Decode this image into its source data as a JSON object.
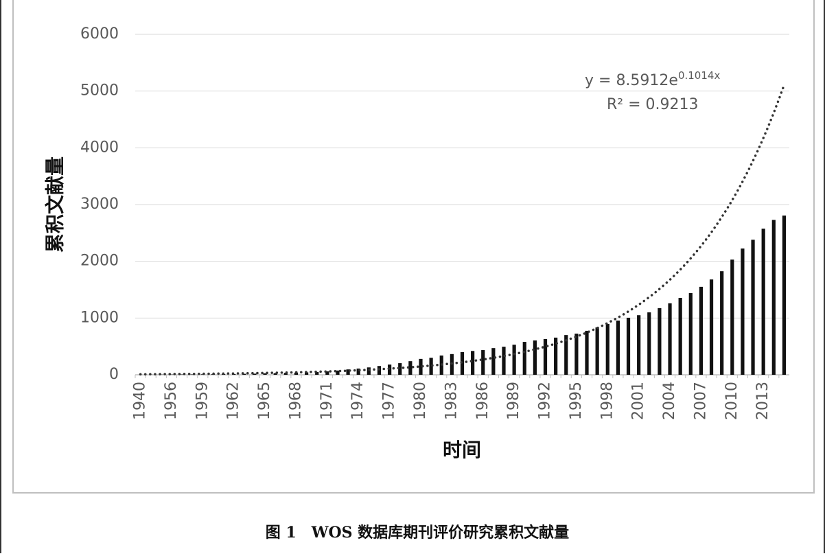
{
  "chart_data": {
    "type": "bar",
    "caption": "图 1　WOS 数据库期刊评价研究累积文献量",
    "x_label": "时间",
    "y_label": "累积文献量",
    "categories": [
      "1940",
      null,
      null,
      "1956",
      null,
      null,
      "1959",
      null,
      null,
      "1962",
      null,
      null,
      "1965",
      null,
      null,
      "1968",
      null,
      null,
      "1971",
      null,
      null,
      "1974",
      null,
      null,
      "1977",
      null,
      null,
      "1980",
      null,
      null,
      "1983",
      null,
      null,
      "1986",
      null,
      null,
      "1989",
      null,
      null,
      "1992",
      null,
      null,
      "1995",
      null,
      null,
      "1998",
      null,
      null,
      "2001",
      null,
      null,
      "2004",
      null,
      null,
      "2007",
      null,
      null,
      "2010",
      null,
      null,
      "2013",
      null,
      null
    ],
    "values": [
      1,
      2,
      3,
      4,
      5,
      6,
      8,
      10,
      12,
      14,
      17,
      20,
      25,
      28,
      33,
      38,
      43,
      50,
      60,
      75,
      95,
      110,
      130,
      155,
      180,
      205,
      240,
      280,
      300,
      340,
      365,
      400,
      420,
      435,
      470,
      495,
      530,
      580,
      605,
      630,
      655,
      700,
      725,
      775,
      835,
      895,
      955,
      1005,
      1050,
      1100,
      1175,
      1260,
      1355,
      1440,
      1550,
      1680,
      1825,
      2030,
      2225,
      2380,
      2575,
      2730,
      2806
    ],
    "color": "#111111",
    "ylim": [
      0,
      6000
    ],
    "yticks": [
      0,
      1000,
      2000,
      3000,
      4000,
      5000,
      6000
    ],
    "grid": true,
    "trendline": {
      "equation": "y = 8.5912e",
      "exponent": "0.1014x",
      "r2": "R² = 0.9213",
      "a": 8.5912,
      "b": 0.1014,
      "color": "#333333"
    }
  }
}
